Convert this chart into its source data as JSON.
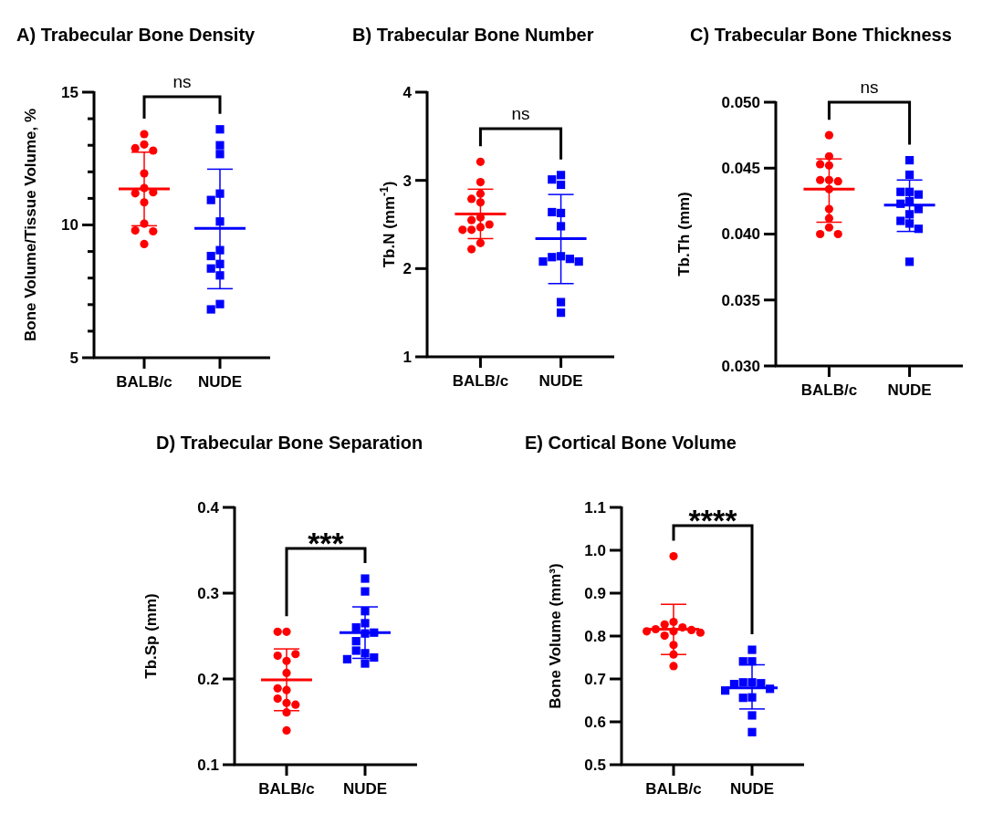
{
  "chart_data": [
    {
      "type": "scatter",
      "title": "A) Trabecular Bone Density",
      "ylabel": "Bone Volume/Tissue Volume, %",
      "categories": [
        "BALB/c",
        "NUDE"
      ],
      "ylim": [
        5,
        15
      ],
      "yticks": [
        5,
        {
          "value": 6,
          "label": null
        },
        {
          "value": 7,
          "label": null
        },
        {
          "value": 8,
          "label": null
        },
        {
          "value": 9,
          "label": null
        },
        10,
        {
          "value": 11,
          "label": null
        },
        {
          "value": 12,
          "label": null
        },
        {
          "value": 13,
          "label": null
        },
        {
          "value": 14,
          "label": null
        },
        15
      ],
      "annotations": [
        "ns"
      ],
      "series": [
        {
          "type": "scatter",
          "marker": "circle",
          "color": "#ff0000",
          "x": [
            "BALB/c",
            "BALB/c",
            "BALB/c",
            "BALB/c",
            "BALB/c",
            "BALB/c",
            "BALB/c",
            "BALB/c",
            "BALB/c",
            "BALB/c",
            "BALB/c",
            "BALB/c",
            "BALB/c"
          ],
          "values": [
            13.42,
            13.03,
            12.89,
            12.8,
            11.94,
            11.39,
            11.19,
            11.23,
            10.85,
            10.05,
            9.79,
            9.76,
            9.28
          ]
        },
        {
          "type": "scatter",
          "marker": "square",
          "color": "#0000ff",
          "x": [
            "NUDE",
            "NUDE",
            "NUDE",
            "NUDE",
            "NUDE",
            "NUDE",
            "NUDE",
            "NUDE",
            "NUDE",
            "NUDE",
            "NUDE",
            "NUDE",
            "NUDE"
          ],
          "values": [
            13.6,
            13.0,
            12.67,
            11.18,
            10.94,
            10.13,
            9.05,
            8.83,
            8.53,
            8.36,
            8.1,
            7.02,
            6.82
          ]
        },
        {
          "type": "box",
          "color": "#ff0000",
          "boxes": [
            {
              "low": 9.97,
              "q1": 11.36,
              "median": 11.36,
              "q3": 11.36,
              "high": 12.74
            },
            null
          ]
        },
        {
          "type": "box",
          "color": "#0000ff",
          "boxes": [
            null,
            {
              "low": 7.6,
              "q1": 9.87,
              "median": 9.87,
              "q3": 9.87,
              "high": 12.1
            }
          ]
        }
      ]
    },
    {
      "type": "scatter",
      "title": "B) Trabecular Bone Number",
      "ylabel": "Tb.N (mm$^{-1}$)",
      "categories": [
        "BALB/c",
        "NUDE"
      ],
      "ylim": [
        1,
        4
      ],
      "yticks": [
        1,
        2,
        3,
        4
      ],
      "annotations": [
        "ns"
      ],
      "series": [
        {
          "type": "scatter",
          "marker": "circle",
          "color": "#ff0000",
          "x": [
            "BALB/c",
            "BALB/c",
            "BALB/c",
            "BALB/c",
            "BALB/c",
            "BALB/c",
            "BALB/c",
            "BALB/c",
            "BALB/c",
            "BALB/c",
            "BALB/c",
            "BALB/c",
            "BALB/c"
          ],
          "values": [
            3.21,
            2.98,
            2.85,
            2.79,
            2.75,
            2.58,
            2.55,
            2.5,
            2.47,
            2.44,
            2.44,
            2.29,
            2.22
          ]
        },
        {
          "type": "scatter",
          "marker": "square",
          "color": "#0000ff",
          "x": [
            "NUDE",
            "NUDE",
            "NUDE",
            "NUDE",
            "NUDE",
            "NUDE",
            "NUDE",
            "NUDE",
            "NUDE",
            "NUDE",
            "NUDE",
            "NUDE",
            "NUDE"
          ],
          "values": [
            3.06,
            3.01,
            2.95,
            2.63,
            2.64,
            2.48,
            2.14,
            2.13,
            2.11,
            2.08,
            2.08,
            1.62,
            1.5
          ]
        },
        {
          "type": "box",
          "color": "#ff0000",
          "boxes": [
            {
              "low": 2.34,
              "q1": 2.62,
              "median": 2.62,
              "q3": 2.62,
              "high": 2.9
            },
            null
          ]
        },
        {
          "type": "box",
          "color": "#0000ff",
          "boxes": [
            null,
            {
              "low": 1.83,
              "q1": 2.34,
              "median": 2.34,
              "q3": 2.34,
              "high": 2.84
            }
          ]
        }
      ]
    },
    {
      "type": "scatter",
      "title": "C) Trabecular Bone Thickness",
      "ylabel": "Tb.Th (mm)",
      "categories": [
        "BALB/c",
        "NUDE"
      ],
      "ylim": [
        0.03,
        0.05
      ],
      "yticks": [
        {
          "value": 0.03,
          "label": "0.030"
        },
        {
          "value": 0.035,
          "label": "0.035"
        },
        {
          "value": 0.04,
          "label": "0.040"
        },
        {
          "value": 0.045,
          "label": "0.045"
        },
        {
          "value": 0.05,
          "label": "0.050"
        }
      ],
      "annotations": [
        "ns"
      ],
      "series": [
        {
          "type": "scatter",
          "marker": "circle",
          "color": "#ff0000",
          "x": [
            "BALB/c",
            "BALB/c",
            "BALB/c",
            "BALB/c",
            "BALB/c",
            "BALB/c",
            "BALB/c",
            "BALB/c",
            "BALB/c",
            "BALB/c",
            "BALB/c",
            "BALB/c",
            "BALB/c"
          ],
          "values": [
            0.0475,
            0.0459,
            0.0453,
            0.0452,
            0.0441,
            0.0441,
            0.044,
            0.0434,
            0.0419,
            0.0412,
            0.0405,
            0.04,
            0.04
          ]
        },
        {
          "type": "scatter",
          "marker": "square",
          "color": "#0000ff",
          "x": [
            "NUDE",
            "NUDE",
            "NUDE",
            "NUDE",
            "NUDE",
            "NUDE",
            "NUDE",
            "NUDE",
            "NUDE",
            "NUDE",
            "NUDE",
            "NUDE",
            "NUDE"
          ],
          "values": [
            0.0456,
            0.0445,
            0.0432,
            0.0432,
            0.043,
            0.0425,
            0.0423,
            0.0419,
            0.0415,
            0.041,
            0.0408,
            0.0404,
            0.0379
          ]
        },
        {
          "type": "box",
          "color": "#ff0000",
          "boxes": [
            {
              "low": 0.0409,
              "q1": 0.0434,
              "median": 0.0434,
              "q3": 0.0434,
              "high": 0.0457
            },
            null
          ]
        },
        {
          "type": "box",
          "color": "#0000ff",
          "boxes": [
            null,
            {
              "low": 0.0402,
              "q1": 0.0422,
              "median": 0.0422,
              "q3": 0.0422,
              "high": 0.0441
            }
          ]
        }
      ]
    },
    {
      "type": "scatter",
      "title": "D) Trabecular Bone Separation",
      "ylabel": "Tb.Sp (mm)",
      "categories": [
        "BALB/c",
        "NUDE"
      ],
      "ylim": [
        0.1,
        0.4
      ],
      "yticks": [
        0.1,
        0.2,
        0.3,
        0.4
      ],
      "annotations": [
        "***"
      ],
      "series": [
        {
          "type": "scatter",
          "marker": "circle",
          "color": "#ff0000",
          "x": [
            "BALB/c",
            "BALB/c",
            "BALB/c",
            "BALB/c",
            "BALB/c",
            "BALB/c",
            "BALB/c",
            "BALB/c",
            "BALB/c",
            "BALB/c",
            "BALB/c",
            "BALB/c",
            "BALB/c"
          ],
          "values": [
            0.255,
            0.255,
            0.221,
            0.227,
            0.229,
            0.207,
            0.187,
            0.189,
            0.177,
            0.172,
            0.17,
            0.161,
            0.14
          ]
        },
        {
          "type": "scatter",
          "marker": "square",
          "color": "#0000ff",
          "x": [
            "NUDE",
            "NUDE",
            "NUDE",
            "NUDE",
            "NUDE",
            "NUDE",
            "NUDE",
            "NUDE",
            "NUDE",
            "NUDE",
            "NUDE",
            "NUDE",
            "NUDE"
          ],
          "values": [
            0.317,
            0.302,
            0.279,
            0.265,
            0.26,
            0.253,
            0.254,
            0.244,
            0.23,
            0.233,
            0.225,
            0.223,
            0.218
          ]
        },
        {
          "type": "box",
          "color": "#ff0000",
          "boxes": [
            {
              "low": 0.163,
              "q1": 0.199,
              "median": 0.199,
              "q3": 0.199,
              "high": 0.235
            },
            null
          ]
        },
        {
          "type": "box",
          "color": "#0000ff",
          "boxes": [
            null,
            {
              "low": 0.224,
              "q1": 0.254,
              "median": 0.254,
              "q3": 0.254,
              "high": 0.284
            }
          ]
        }
      ]
    },
    {
      "type": "scatter",
      "title": "E) Cortical Bone Volume",
      "ylabel": "Bone Volume (mm³)",
      "categories": [
        "BALB/c",
        "NUDE"
      ],
      "ylim": [
        0.5,
        1.1
      ],
      "yticks": [
        0.5,
        0.6,
        0.7,
        0.8,
        0.9,
        {
          "value": 1,
          "label": "1.0"
        },
        1.1
      ],
      "annotations": [
        "****"
      ],
      "series": [
        {
          "type": "scatter",
          "marker": "circle",
          "color": "#ff0000",
          "x": [
            "BALB/c",
            "BALB/c",
            "BALB/c",
            "BALB/c",
            "BALB/c",
            "BALB/c",
            "BALB/c",
            "BALB/c",
            "BALB/c",
            "BALB/c",
            "BALB/c",
            "BALB/c",
            "BALB/c"
          ],
          "values": [
            0.986,
            0.833,
            0.827,
            0.82,
            0.816,
            0.814,
            0.811,
            0.811,
            0.808,
            0.801,
            0.779,
            0.757,
            0.73
          ]
        },
        {
          "type": "scatter",
          "marker": "square",
          "color": "#0000ff",
          "x": [
            "NUDE",
            "NUDE",
            "NUDE",
            "NUDE",
            "NUDE",
            "NUDE",
            "NUDE",
            "NUDE",
            "NUDE",
            "NUDE",
            "NUDE",
            "NUDE",
            "NUDE"
          ],
          "values": [
            0.768,
            0.741,
            0.741,
            0.692,
            0.692,
            0.69,
            0.688,
            0.677,
            0.673,
            0.657,
            0.656,
            0.615,
            0.576
          ]
        },
        {
          "type": "box",
          "color": "#ff0000",
          "boxes": [
            {
              "low": 0.757,
              "q1": 0.816,
              "median": 0.816,
              "q3": 0.816,
              "high": 0.874
            },
            null
          ]
        },
        {
          "type": "box",
          "color": "#0000ff",
          "boxes": [
            null,
            {
              "low": 0.63,
              "q1": 0.679,
              "median": 0.679,
              "q3": 0.679,
              "high": 0.733
            }
          ]
        }
      ]
    }
  ]
}
